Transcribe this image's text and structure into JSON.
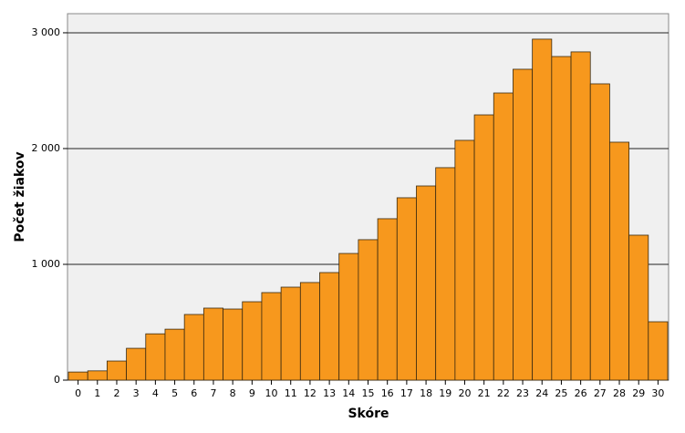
{
  "chart_data": {
    "type": "bar",
    "x_label": "Skóre",
    "y_label": "Počet žiakov",
    "categories": [
      "0",
      "1",
      "2",
      "3",
      "4",
      "5",
      "6",
      "7",
      "8",
      "9",
      "10",
      "11",
      "12",
      "13",
      "14",
      "15",
      "16",
      "17",
      "18",
      "19",
      "20",
      "21",
      "22",
      "23",
      "24",
      "25",
      "26",
      "27",
      "28",
      "29",
      "30"
    ],
    "values": [
      70,
      80,
      165,
      275,
      400,
      440,
      567,
      622,
      614,
      677,
      756,
      803,
      843,
      929,
      1094,
      1213,
      1394,
      1575,
      1677,
      1835,
      2071,
      2291,
      2480,
      2685,
      2945,
      2795,
      2835,
      2559,
      2055,
      1252,
      504
    ],
    "color": "#f7981d",
    "ylim": [
      0,
      3165
    ],
    "yticks": [
      0,
      {
        "value": 1000,
        "label": "1 000"
      },
      {
        "value": 2000,
        "label": "2 000"
      },
      {
        "value": 3000,
        "label": "3 000"
      }
    ],
    "grid": true
  }
}
